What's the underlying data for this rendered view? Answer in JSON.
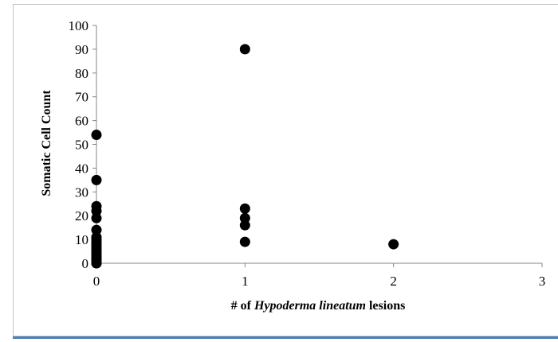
{
  "chart_data": {
    "type": "scatter",
    "title": "",
    "xlabel_parts": [
      {
        "text": "# of ",
        "italic": false
      },
      {
        "text": "Hypoderma lineatum",
        "italic": true
      },
      {
        "text": " lesions",
        "italic": false
      }
    ],
    "ylabel": "Somatic Cell Count",
    "xlim": [
      0,
      3
    ],
    "ylim": [
      0,
      100
    ],
    "x_ticks": [
      0,
      1,
      2,
      3
    ],
    "y_ticks": [
      0,
      10,
      20,
      30,
      40,
      50,
      60,
      70,
      80,
      90,
      100
    ],
    "grid": false,
    "legend": "none",
    "marker_color": "#000000",
    "axis_color": "#868686",
    "series": [
      {
        "x": [
          0,
          0,
          0,
          0,
          0,
          0,
          0,
          0,
          0,
          0,
          0,
          0,
          0,
          0,
          0,
          0,
          0,
          0,
          0,
          0,
          0,
          0,
          0,
          0,
          1,
          1,
          1,
          1,
          1,
          2
        ],
        "y": [
          54,
          35,
          24,
          22,
          19,
          14,
          11,
          10,
          9,
          8,
          7,
          6,
          5,
          4,
          3,
          2,
          1,
          0,
          0,
          1,
          2,
          3,
          5,
          7,
          90,
          23,
          19,
          16,
          9,
          8
        ]
      }
    ]
  }
}
